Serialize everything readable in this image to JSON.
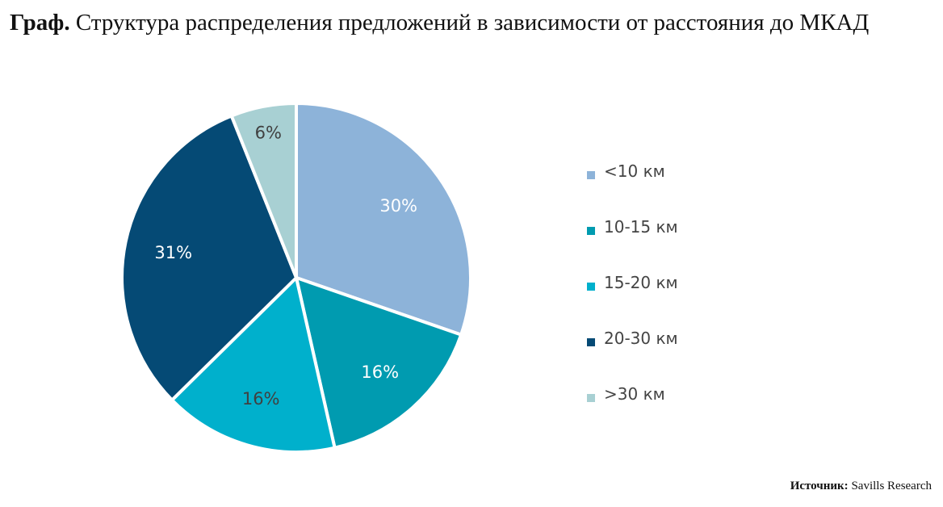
{
  "title": {
    "prefix": "Граф.",
    "text": " Структура распределения предложений в зависимости от расстояния до МКАД"
  },
  "source": {
    "label": "Источник:",
    "text": " Savills Research"
  },
  "chart_data": {
    "type": "pie",
    "start": "top",
    "direction": "clockwise",
    "legend_position": "right",
    "slices": [
      {
        "label": "<10 км",
        "value": 30,
        "data_label": "30%",
        "color": "#8db3d9",
        "label_color": "#ffffff"
      },
      {
        "label": "10-15 км",
        "value": 16,
        "data_label": "16%",
        "color": "#009bb0",
        "label_color": "#ffffff"
      },
      {
        "label": "15-20 км",
        "value": 16,
        "data_label": "16%",
        "color": "#00b0cc",
        "label_color": "#404040"
      },
      {
        "label": "20-30 км",
        "value": 31,
        "data_label": "31%",
        "color": "#054a75",
        "label_color": "#ffffff"
      },
      {
        "label": ">30 км",
        "value": 6,
        "data_label": "6%",
        "color": "#a8d0d3",
        "label_color": "#404040"
      }
    ]
  }
}
